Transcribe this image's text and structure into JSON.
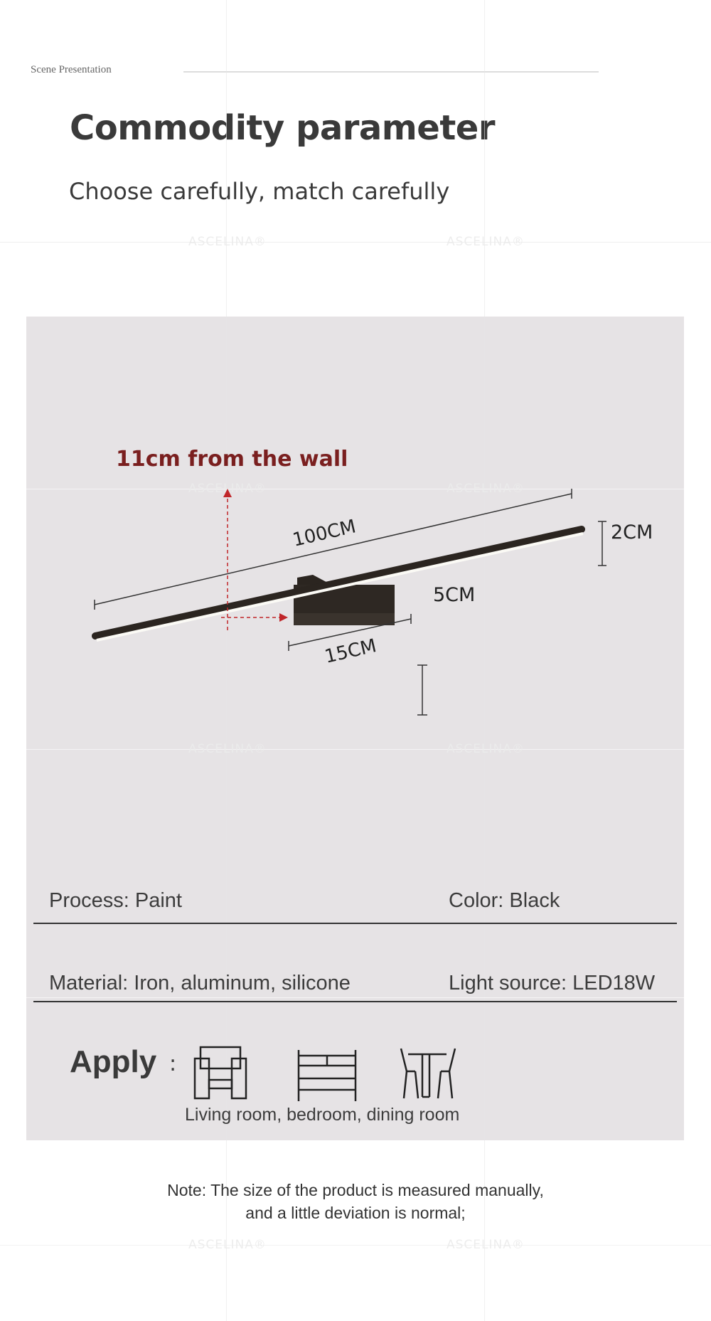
{
  "header": {
    "section_label": "Scene Presentation",
    "title": "Commodity parameter",
    "subtitle": "Choose carefully, match carefully"
  },
  "watermark": "ASCELINA®",
  "diagram": {
    "wall_distance": "11cm from the wall",
    "length": "100CM",
    "height_bar": "2CM",
    "height_base": "5CM",
    "width_base": "15CM",
    "accent_color": "#7a1f1f"
  },
  "params": [
    {
      "label": "Process: Paint"
    },
    {
      "label": "Color: Black"
    },
    {
      "label": "Material: Iron, aluminum, silicone"
    },
    {
      "label": "Light source: LED18W"
    }
  ],
  "apply": {
    "label": "Apply",
    "colon": ":",
    "icons": [
      "sofa-icon",
      "bed-icon",
      "dining-table-icon"
    ],
    "caption": "Living room, bedroom, dining room"
  },
  "note": {
    "line1": "Note: The size of the product is measured manually,",
    "line2": "and a little deviation is normal;"
  }
}
